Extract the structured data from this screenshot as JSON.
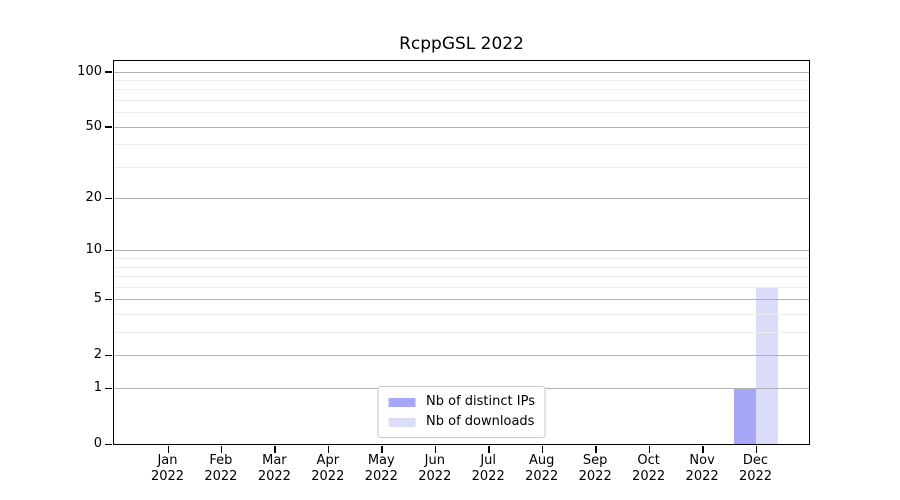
{
  "chart_data": {
    "type": "bar",
    "title": "RcppGSL 2022",
    "xlabel": "",
    "ylabel": "",
    "categories": [
      "Jan 2022",
      "Feb 2022",
      "Mar 2022",
      "Apr 2022",
      "May 2022",
      "Jun 2022",
      "Jul 2022",
      "Aug 2022",
      "Sep 2022",
      "Oct 2022",
      "Nov 2022",
      "Dec 2022"
    ],
    "series": [
      {
        "name": "Nb of distinct IPs",
        "color": "#a7a7f9",
        "values": [
          0,
          0,
          0,
          0,
          0,
          0,
          0,
          0,
          0,
          0,
          0,
          1
        ]
      },
      {
        "name": "Nb of downloads",
        "color": "#dbdbfa",
        "values": [
          0,
          0,
          0,
          0,
          0,
          0,
          0,
          0,
          0,
          0,
          0,
          6
        ]
      }
    ],
    "y_scale": "log1p",
    "ylim": [
      0,
      114
    ],
    "y_breaks": [
      0,
      1,
      2,
      5,
      10,
      20,
      50,
      100
    ],
    "y_minor_gridlines": [
      3,
      4,
      6,
      7,
      8,
      9,
      30,
      40,
      60,
      70,
      80,
      90
    ],
    "grid": "horizontal-only",
    "legend_position": "bottom-center-inside",
    "colors": {
      "major_grid": "#b3b3b3",
      "minor_grid": "#ededed",
      "axis": "#000000",
      "legend_border": "#c9c9c9",
      "background": "#ffffff"
    }
  }
}
